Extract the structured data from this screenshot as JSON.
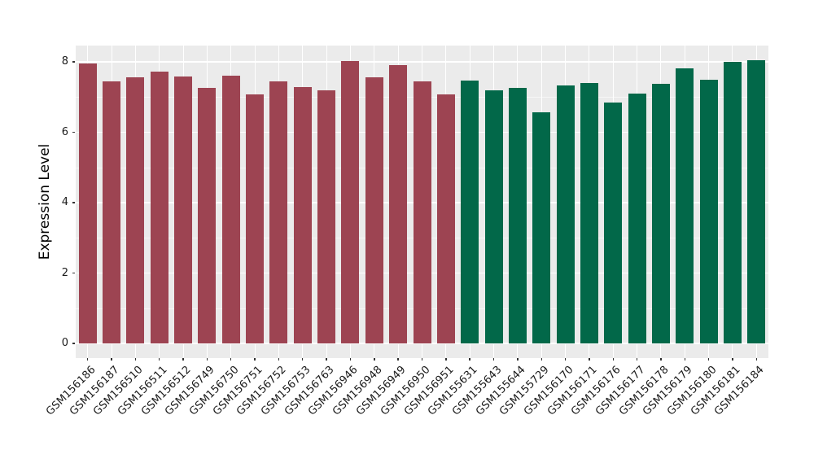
{
  "chart_data": {
    "type": "bar",
    "title": "",
    "xlabel": "",
    "ylabel": "Expression Level",
    "legend_position": "none",
    "grid": "on",
    "panel_bg": "#EBEBEB",
    "grid_color": "#FFFFFF",
    "yticks": [
      0,
      2,
      4,
      6,
      8
    ],
    "ylim": [
      0,
      8.45
    ],
    "categories": [
      "GSM156186",
      "GSM156187",
      "GSM156510",
      "GSM156511",
      "GSM156512",
      "GSM156749",
      "GSM156750",
      "GSM156751",
      "GSM156752",
      "GSM156753",
      "GSM156763",
      "GSM156946",
      "GSM156948",
      "GSM156949",
      "GSM156950",
      "GSM156951",
      "GSM155631",
      "GSM155643",
      "GSM155644",
      "GSM155729",
      "GSM156170",
      "GSM156171",
      "GSM156176",
      "GSM156177",
      "GSM156178",
      "GSM156179",
      "GSM156180",
      "GSM156181",
      "GSM156184"
    ],
    "values": [
      7.95,
      7.45,
      7.55,
      7.72,
      7.58,
      7.25,
      7.61,
      7.08,
      7.45,
      7.28,
      7.2,
      8.02,
      7.56,
      7.9,
      7.45,
      7.08,
      7.47,
      7.2,
      7.27,
      6.57,
      7.33,
      7.4,
      6.85,
      7.1,
      7.38,
      7.82,
      7.5,
      8.0,
      8.04
    ],
    "groups": [
      "group1",
      "group1",
      "group1",
      "group1",
      "group1",
      "group1",
      "group1",
      "group1",
      "group1",
      "group1",
      "group1",
      "group1",
      "group1",
      "group1",
      "group1",
      "group1",
      "group2",
      "group2",
      "group2",
      "group2",
      "group2",
      "group2",
      "group2",
      "group2",
      "group2",
      "group2",
      "group2",
      "group2",
      "group2"
    ],
    "group_colors": {
      "group1": "#9D4452",
      "group2": "#026849"
    }
  }
}
